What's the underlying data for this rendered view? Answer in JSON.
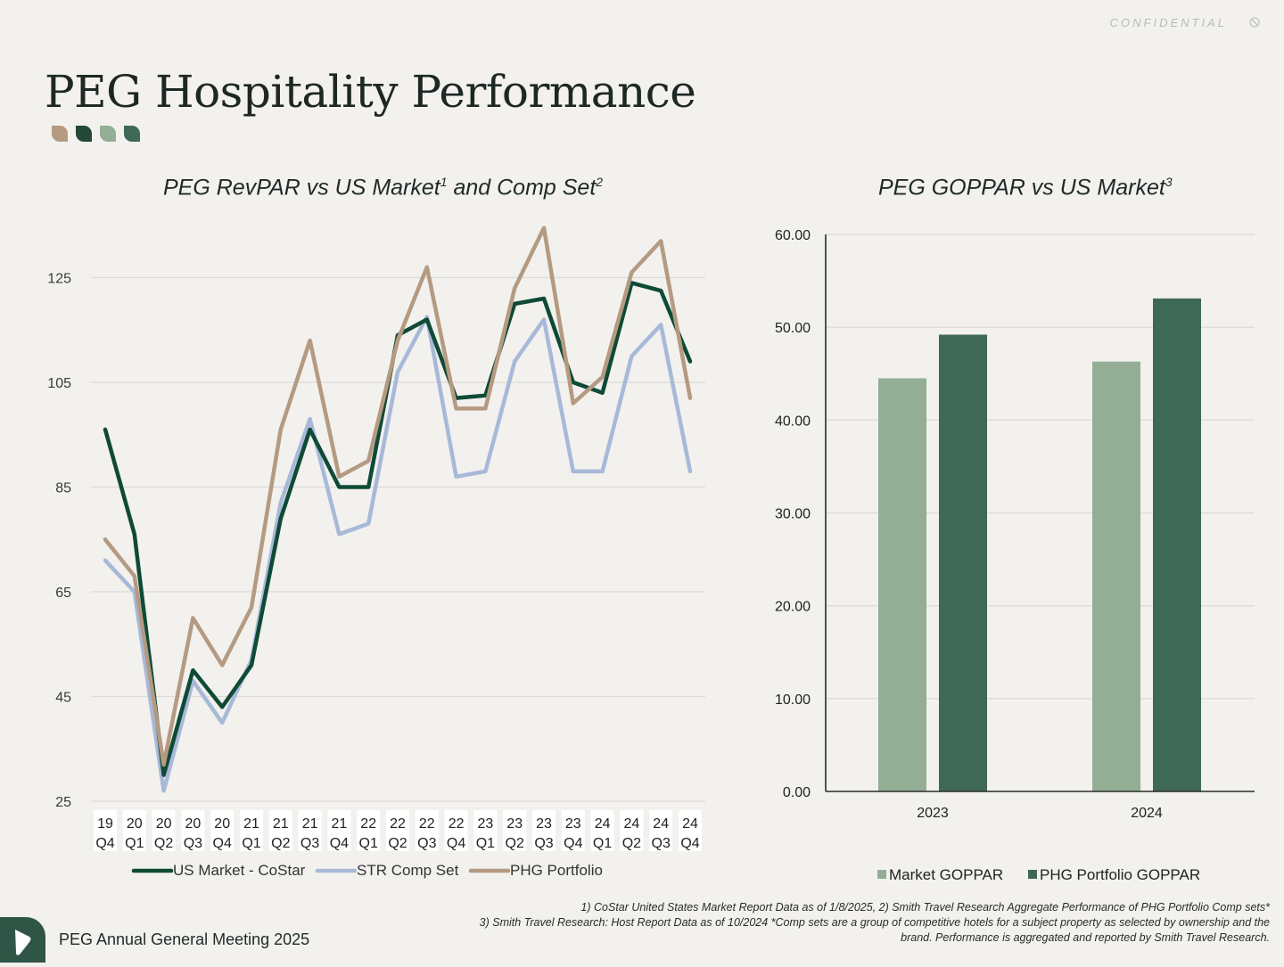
{
  "header": {
    "confidential_label": "CONFIDENTIAL"
  },
  "page": {
    "title": "PEG Hospitality Performance"
  },
  "leaf_colors": [
    "#B59A82",
    "#24473A",
    "#93AE94",
    "#3E6957"
  ],
  "line_chart": {
    "title": "PEG RevPAR vs US Market",
    "title_sup1": "1",
    "title_mid": " and Comp Set",
    "title_sup2": "2"
  },
  "bar_chart": {
    "title": "PEG GOPPAR vs US Market",
    "title_sup": "3"
  },
  "chart_data": [
    {
      "type": "line",
      "title": "PEG RevPAR vs US Market1 and Comp Set2",
      "categories": [
        [
          "19",
          "Q4"
        ],
        [
          "20",
          "Q1"
        ],
        [
          "20",
          "Q2"
        ],
        [
          "20",
          "Q3"
        ],
        [
          "20",
          "Q4"
        ],
        [
          "21",
          "Q1"
        ],
        [
          "21",
          "Q2"
        ],
        [
          "21",
          "Q3"
        ],
        [
          "21",
          "Q4"
        ],
        [
          "22",
          "Q1"
        ],
        [
          "22",
          "Q2"
        ],
        [
          "22",
          "Q3"
        ],
        [
          "22",
          "Q4"
        ],
        [
          "23",
          "Q1"
        ],
        [
          "23",
          "Q2"
        ],
        [
          "23",
          "Q3"
        ],
        [
          "23",
          "Q4"
        ],
        [
          "24",
          "Q1"
        ],
        [
          "24",
          "Q2"
        ],
        [
          "24",
          "Q3"
        ],
        [
          "24",
          "Q4"
        ]
      ],
      "yticks": [
        25,
        45,
        65,
        85,
        105,
        125
      ],
      "ylim": [
        25,
        135
      ],
      "grid": true,
      "series": [
        {
          "name": "US Market - CoStar",
          "color": "#0F4A37",
          "values": [
            96,
            76,
            30,
            50,
            43,
            51,
            79,
            96,
            85,
            85,
            114,
            117,
            102,
            102.5,
            120,
            121,
            105,
            103,
            124,
            122.5,
            109
          ]
        },
        {
          "name": "STR Comp Set",
          "color": "#A8B9D8",
          "values": [
            71,
            65,
            27,
            48,
            40,
            52,
            82,
            98,
            76,
            78,
            107,
            117.5,
            87,
            88,
            109,
            117,
            88,
            88,
            110,
            116,
            88
          ]
        },
        {
          "name": "PHG Portfolio",
          "color": "#B59A82",
          "values": [
            75,
            68,
            32,
            60,
            51,
            62,
            96,
            113,
            87,
            90,
            113,
            127,
            100,
            100,
            123,
            134.5,
            101,
            106,
            126,
            132,
            102
          ]
        }
      ],
      "legend": "bottom"
    },
    {
      "type": "bar",
      "title": "PEG GOPPAR vs US Market3",
      "categories": [
        "2023",
        "2024"
      ],
      "yticks": [
        "0.00",
        "10.00",
        "20.00",
        "30.00",
        "40.00",
        "50.00",
        "60.00"
      ],
      "ylim": [
        0,
        60
      ],
      "grid": true,
      "series": [
        {
          "name": "Market GOPPAR",
          "color": "#93AE94",
          "values": [
            44.5,
            46.3
          ]
        },
        {
          "name": "PHG Portfolio GOPPAR",
          "color": "#3E6957",
          "values": [
            49.2,
            53.1
          ]
        }
      ],
      "legend": "bottom"
    }
  ],
  "footer": {
    "meeting": "PEG Annual General Meeting 2025",
    "footnote_line1": "1) CoStar United States Market Report Data as of 1/8/2025, 2) Smith Travel Research Aggregate Performance of PHG Portfolio Comp sets*",
    "footnote_line2": "3) Smith Travel Research: Host Report Data as of 10/2024 *Comp sets are a group of competitive hotels for a subject property as selected by ownership and the brand. Performance is aggregated and reported by Smith Travel Research."
  }
}
